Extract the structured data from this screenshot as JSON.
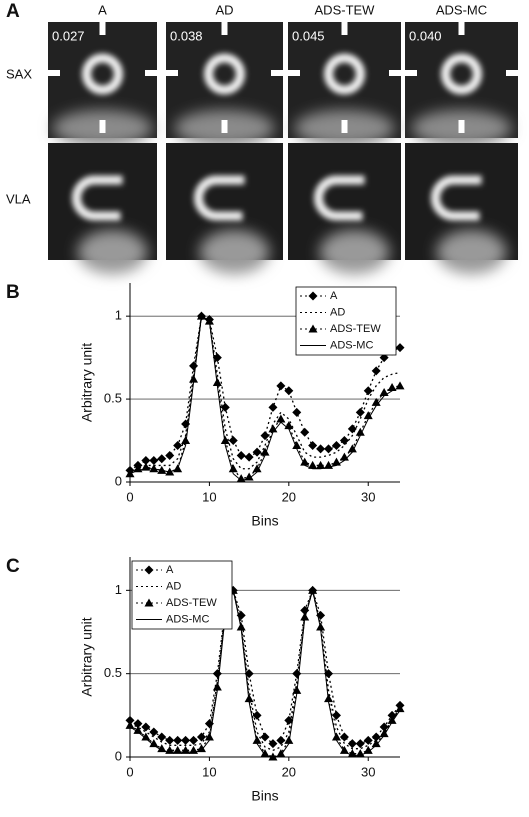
{
  "panel_a": {
    "label": "A",
    "columns": [
      "A",
      "AD",
      "ADS-TEW",
      "ADS-MC"
    ],
    "rows": [
      "SAX",
      "VLA"
    ],
    "values": [
      "0.027",
      "0.038",
      "0.045",
      "0.040"
    ]
  },
  "chart_data": [
    {
      "type": "line",
      "panel": "B",
      "ylabel": "Arbitrary unit",
      "xlabel": "Bins",
      "legend": "upper right",
      "grid": true,
      "xlim": [
        0,
        34
      ],
      "xticks": [
        0,
        10,
        20,
        30
      ],
      "ylim": [
        0,
        1.2
      ],
      "yticks": [
        0,
        0.5,
        1
      ],
      "x": [
        0,
        1,
        2,
        3,
        4,
        5,
        6,
        7,
        8,
        9,
        10,
        11,
        12,
        13,
        14,
        15,
        16,
        17,
        18,
        19,
        20,
        21,
        22,
        23,
        24,
        25,
        26,
        27,
        28,
        29,
        30,
        31,
        32,
        33,
        34
      ],
      "series": [
        {
          "name": "A",
          "color": "#000000",
          "dash": true,
          "marker": "diamond",
          "values": [
            0.07,
            0.1,
            0.13,
            0.13,
            0.14,
            0.16,
            0.22,
            0.35,
            0.7,
            1.0,
            0.98,
            0.75,
            0.45,
            0.25,
            0.16,
            0.15,
            0.18,
            0.28,
            0.45,
            0.58,
            0.55,
            0.42,
            0.3,
            0.22,
            0.2,
            0.2,
            0.22,
            0.25,
            0.32,
            0.42,
            0.55,
            0.67,
            0.75,
            0.79,
            0.81
          ]
        },
        {
          "name": "AD",
          "color": "#000000",
          "dash": true,
          "values": [
            0.06,
            0.08,
            0.1,
            0.1,
            0.1,
            0.1,
            0.14,
            0.28,
            0.65,
            1.0,
            0.97,
            0.65,
            0.32,
            0.14,
            0.08,
            0.08,
            0.12,
            0.22,
            0.35,
            0.42,
            0.38,
            0.28,
            0.18,
            0.15,
            0.15,
            0.16,
            0.18,
            0.22,
            0.28,
            0.38,
            0.5,
            0.58,
            0.63,
            0.65,
            0.66
          ]
        },
        {
          "name": "ADS-TEW",
          "color": "#000000",
          "dash": true,
          "marker": "triangle",
          "values": [
            0.05,
            0.08,
            0.09,
            0.08,
            0.07,
            0.06,
            0.08,
            0.25,
            0.62,
            1.0,
            0.97,
            0.6,
            0.25,
            0.08,
            0.02,
            0.03,
            0.08,
            0.18,
            0.32,
            0.38,
            0.34,
            0.22,
            0.12,
            0.1,
            0.1,
            0.1,
            0.12,
            0.15,
            0.2,
            0.3,
            0.4,
            0.48,
            0.54,
            0.57,
            0.58
          ]
        },
        {
          "name": "ADS-MC",
          "color": "#000000",
          "dash": false,
          "values": [
            0.05,
            0.07,
            0.08,
            0.08,
            0.07,
            0.06,
            0.08,
            0.22,
            0.6,
            1.0,
            0.97,
            0.58,
            0.22,
            0.05,
            0.01,
            0.02,
            0.06,
            0.16,
            0.3,
            0.36,
            0.32,
            0.2,
            0.1,
            0.08,
            0.08,
            0.09,
            0.1,
            0.13,
            0.18,
            0.28,
            0.38,
            0.46,
            0.52,
            0.55,
            0.57
          ]
        }
      ]
    },
    {
      "type": "line",
      "panel": "C",
      "ylabel": "Arbitrary unit",
      "xlabel": "Bins",
      "legend": "upper left",
      "grid": true,
      "xlim": [
        0,
        34
      ],
      "xticks": [
        0,
        10,
        20,
        30
      ],
      "ylim": [
        0,
        1.2
      ],
      "yticks": [
        0,
        0.5,
        1
      ],
      "x": [
        0,
        1,
        2,
        3,
        4,
        5,
        6,
        7,
        8,
        9,
        10,
        11,
        12,
        13,
        14,
        15,
        16,
        17,
        18,
        19,
        20,
        21,
        22,
        23,
        24,
        25,
        26,
        27,
        28,
        29,
        30,
        31,
        32,
        33,
        34
      ],
      "series": [
        {
          "name": "A",
          "color": "#000000",
          "dash": true,
          "marker": "diamond",
          "values": [
            0.22,
            0.2,
            0.18,
            0.15,
            0.12,
            0.1,
            0.1,
            0.1,
            0.1,
            0.12,
            0.2,
            0.5,
            0.9,
            1.0,
            0.85,
            0.5,
            0.25,
            0.12,
            0.08,
            0.1,
            0.22,
            0.5,
            0.88,
            1.0,
            0.85,
            0.5,
            0.25,
            0.12,
            0.08,
            0.08,
            0.1,
            0.12,
            0.18,
            0.25,
            0.31
          ]
        },
        {
          "name": "AD",
          "color": "#000000",
          "dash": true,
          "values": [
            0.2,
            0.18,
            0.15,
            0.12,
            0.09,
            0.07,
            0.07,
            0.07,
            0.07,
            0.08,
            0.15,
            0.45,
            0.88,
            1.0,
            0.8,
            0.4,
            0.15,
            0.06,
            0.04,
            0.06,
            0.15,
            0.45,
            0.85,
            1.0,
            0.8,
            0.4,
            0.18,
            0.08,
            0.05,
            0.05,
            0.07,
            0.1,
            0.15,
            0.22,
            0.3
          ]
        },
        {
          "name": "ADS-TEW",
          "color": "#000000",
          "dash": true,
          "marker": "triangle",
          "values": [
            0.19,
            0.16,
            0.12,
            0.08,
            0.05,
            0.04,
            0.04,
            0.04,
            0.04,
            0.05,
            0.12,
            0.42,
            0.86,
            1.0,
            0.78,
            0.35,
            0.1,
            0.02,
            0.0,
            0.02,
            0.1,
            0.4,
            0.84,
            1.0,
            0.78,
            0.35,
            0.12,
            0.04,
            0.02,
            0.02,
            0.04,
            0.08,
            0.14,
            0.22,
            0.29
          ]
        },
        {
          "name": "ADS-MC",
          "color": "#000000",
          "dash": false,
          "values": [
            0.18,
            0.15,
            0.11,
            0.07,
            0.04,
            0.03,
            0.03,
            0.03,
            0.03,
            0.04,
            0.1,
            0.4,
            0.85,
            1.0,
            0.77,
            0.33,
            0.08,
            0.01,
            0.0,
            0.01,
            0.08,
            0.38,
            0.83,
            1.0,
            0.77,
            0.33,
            0.1,
            0.03,
            0.01,
            0.01,
            0.03,
            0.07,
            0.13,
            0.21,
            0.28
          ]
        }
      ]
    }
  ]
}
